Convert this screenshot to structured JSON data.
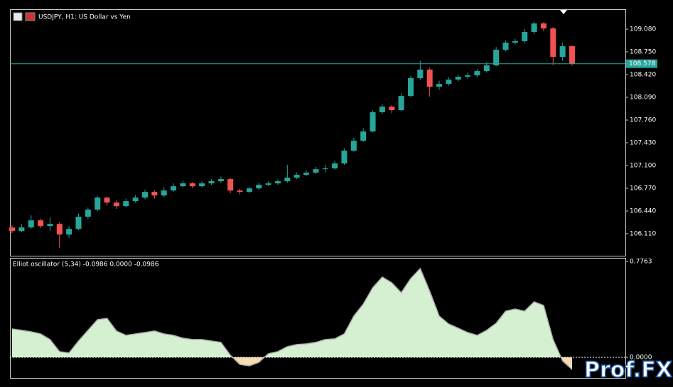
{
  "chart_data": [
    {
      "type": "candlestick",
      "title": "USDJPY, H1:  US Dollar vs Yen",
      "open": [
        106.2,
        106.149,
        106.201,
        106.304,
        106.221,
        106.252,
        106.098,
        106.18,
        106.356,
        106.459,
        106.634,
        106.562,
        106.51,
        106.583,
        106.634,
        106.717,
        106.665,
        106.737,
        106.799,
        106.841,
        106.799,
        106.841,
        106.872,
        106.903,
        106.737,
        106.717,
        106.768,
        106.82,
        106.841,
        106.872,
        106.923,
        106.965,
        106.996,
        107.047,
        107.058,
        107.13,
        107.315,
        107.46,
        107.594,
        107.873,
        107.955,
        107.904,
        108.11,
        108.368,
        108.492,
        108.244,
        108.285,
        108.347,
        108.389,
        108.409,
        108.471,
        108.554,
        108.781,
        108.884,
        108.905,
        109.039,
        109.163,
        109.09,
        108.678,
        108.832
      ],
      "high": [
        106.23,
        106.25,
        106.38,
        106.33,
        106.35,
        106.28,
        106.22,
        106.4,
        106.49,
        106.66,
        106.65,
        106.6,
        106.62,
        106.67,
        106.75,
        106.74,
        106.78,
        106.84,
        106.88,
        106.86,
        106.87,
        106.9,
        106.94,
        106.92,
        106.76,
        106.79,
        106.85,
        106.87,
        106.9,
        107.11,
        107.0,
        107.03,
        107.08,
        107.11,
        107.17,
        107.35,
        107.5,
        107.64,
        107.9,
        107.99,
        107.98,
        108.15,
        108.4,
        108.62,
        108.52,
        108.33,
        108.38,
        108.42,
        108.45,
        108.5,
        108.6,
        108.82,
        108.91,
        108.94,
        109.08,
        109.19,
        109.18,
        109.11,
        108.88,
        108.85
      ],
      "low": [
        106.12,
        106.13,
        106.18,
        106.19,
        106.15,
        105.9,
        106.05,
        106.16,
        106.32,
        106.44,
        106.52,
        106.47,
        106.49,
        106.56,
        106.61,
        106.62,
        106.64,
        106.72,
        106.78,
        106.77,
        106.78,
        106.82,
        106.85,
        106.7,
        106.68,
        106.7,
        106.75,
        106.8,
        106.82,
        106.85,
        106.9,
        106.95,
        106.98,
        107.0,
        107.04,
        107.11,
        107.3,
        107.44,
        107.58,
        107.85,
        107.86,
        107.89,
        108.09,
        108.34,
        108.1,
        108.2,
        108.26,
        108.32,
        108.36,
        108.38,
        108.45,
        108.54,
        108.76,
        108.86,
        108.88,
        109.01,
        109.05,
        108.56,
        108.62,
        108.55
      ],
      "close": [
        106.149,
        106.201,
        106.304,
        106.221,
        106.252,
        106.098,
        106.18,
        106.356,
        106.459,
        106.634,
        106.562,
        106.51,
        106.583,
        106.634,
        106.717,
        106.665,
        106.737,
        106.799,
        106.841,
        106.799,
        106.841,
        106.872,
        106.903,
        106.737,
        106.717,
        106.768,
        106.82,
        106.841,
        106.872,
        106.923,
        106.965,
        106.996,
        107.047,
        107.058,
        107.13,
        107.315,
        107.46,
        107.594,
        107.873,
        107.955,
        107.904,
        108.11,
        108.368,
        108.492,
        108.244,
        108.285,
        108.347,
        108.389,
        108.409,
        108.471,
        108.554,
        108.781,
        108.884,
        108.905,
        109.039,
        109.163,
        109.09,
        108.678,
        108.832,
        108.574
      ],
      "up_color": "#26a69a",
      "down_color": "#ef5350",
      "current_price": {
        "value": 108.578,
        "label": "108.578"
      },
      "ylim": [
        105.79,
        109.369
      ],
      "yticks": [
        {
          "value": 109.08,
          "label": "109.080"
        },
        {
          "value": 108.75,
          "label": "108.750"
        },
        {
          "value": 108.42,
          "label": "108.420"
        },
        {
          "value": 108.09,
          "label": "108.090"
        },
        {
          "value": 107.76,
          "label": "107.760"
        },
        {
          "value": 107.43,
          "label": "107.430"
        },
        {
          "value": 107.1,
          "label": "107.100"
        },
        {
          "value": 106.77,
          "label": "106.770"
        },
        {
          "value": 106.44,
          "label": "106.440"
        },
        {
          "value": 106.11,
          "label": "106.110"
        }
      ]
    },
    {
      "type": "area",
      "title": "Elliot oscillator (5,34) -0.0986 0.0000 -0.0986",
      "values": [
        0.23,
        0.219,
        0.207,
        0.19,
        0.144,
        0.046,
        0.035,
        0.132,
        0.219,
        0.305,
        0.316,
        0.213,
        0.178,
        0.19,
        0.201,
        0.213,
        0.19,
        0.178,
        0.155,
        0.144,
        0.144,
        0.132,
        0.121,
        0.017,
        -0.058,
        -0.069,
        -0.04,
        0.029,
        0.046,
        0.086,
        0.104,
        0.109,
        0.121,
        0.144,
        0.15,
        0.19,
        0.334,
        0.431,
        0.564,
        0.65,
        0.604,
        0.523,
        0.638,
        0.719,
        0.535,
        0.334,
        0.27,
        0.236,
        0.201,
        0.178,
        0.219,
        0.276,
        0.374,
        0.391,
        0.374,
        0.449,
        0.42,
        0.144,
        -0.029,
        -0.0986
      ],
      "positive_color": "#d4f0d0",
      "negative_color": "#f7dcb2",
      "line_color": "#aaaaaa",
      "ylim": [
        -0.167,
        0.805
      ],
      "yticks": [
        0.7763,
        {
          "value": 0,
          "label": "0.0000"
        }
      ]
    }
  ],
  "watermark": "Prof.FX"
}
